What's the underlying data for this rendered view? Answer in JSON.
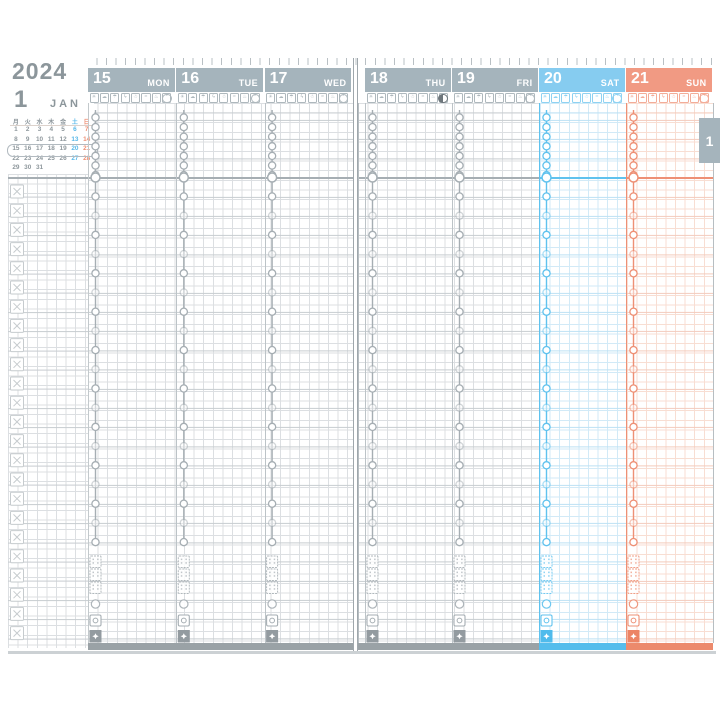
{
  "calendar": {
    "year": "2024",
    "month_number": "1",
    "month_name": "JAN",
    "weekday_header": [
      "月",
      "火",
      "水",
      "木",
      "金",
      "土",
      "日"
    ],
    "weeks": [
      [
        "1",
        "2",
        "3",
        "4",
        "5",
        "6",
        "7"
      ],
      [
        "8",
        "9",
        "10",
        "11",
        "12",
        "13",
        "14"
      ],
      [
        "15",
        "16",
        "17",
        "18",
        "19",
        "20",
        "21"
      ],
      [
        "22",
        "23",
        "24",
        "25",
        "26",
        "27",
        "28"
      ],
      [
        "29",
        "30",
        "31",
        "",
        "",
        "",
        ""
      ]
    ],
    "highlighted_week_index": 2
  },
  "month_tab": {
    "label": "1"
  },
  "days": [
    {
      "date": "15",
      "dow": "MON",
      "type": "weekday",
      "page": "left",
      "moon": null
    },
    {
      "date": "16",
      "dow": "TUE",
      "type": "weekday",
      "page": "left",
      "moon": null
    },
    {
      "date": "17",
      "dow": "WED",
      "type": "weekday",
      "page": "left",
      "moon": null
    },
    {
      "date": "18",
      "dow": "THU",
      "type": "weekday",
      "page": "right",
      "moon": "first-quarter"
    },
    {
      "date": "19",
      "dow": "FRI",
      "type": "weekday",
      "page": "right",
      "moon": null
    },
    {
      "date": "20",
      "dow": "SAT",
      "type": "saturday",
      "page": "right",
      "moon": null
    },
    {
      "date": "21",
      "dow": "SUN",
      "type": "sunday",
      "page": "right",
      "moon": null
    }
  ],
  "weather_icons": [
    "sun",
    "cloud",
    "umbrella",
    "thunder",
    "snow",
    "wind",
    "hot-spring",
    "temperature"
  ],
  "colors": {
    "header_weekday": "#a5b4bc",
    "header_saturday": "#86ccf0",
    "header_sunday": "#f19a83",
    "chain_weekday": "#a6aeb3",
    "chain_saturday": "#5fc2ee",
    "chain_sunday": "#ee9075",
    "solid_weekday": "#939ba0",
    "solid_saturday": "#4fbbec",
    "solid_sunday": "#ec8465",
    "icon_weekday": "#aeb8bd",
    "icon_saturday": "#8ed2f2",
    "icon_sunday": "#f3ac98",
    "calendar_saturday": "#58b8e8",
    "calendar_sunday": "#ee8e72",
    "grid_line": "#dcdfe2",
    "grid_line_strong": "#c7ccd0",
    "tab_background": "#a5b4bc"
  }
}
